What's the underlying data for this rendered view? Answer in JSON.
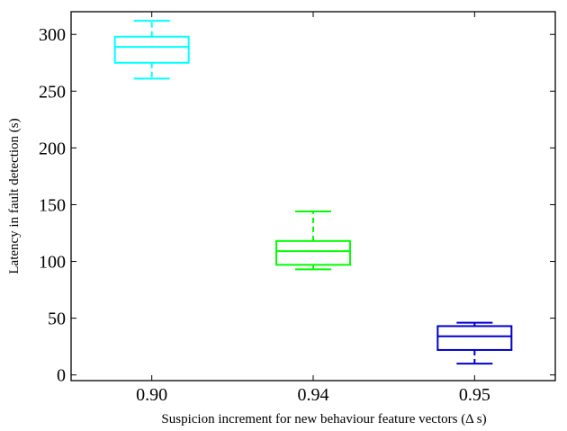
{
  "chart_data": {
    "type": "box",
    "xlabel": "Suspicion increment for new behaviour feature vectors (Δ s)",
    "ylabel": "Latency in fault detection (s)",
    "ylim": [
      -5,
      320
    ],
    "y_ticks": [
      0,
      50,
      100,
      150,
      200,
      250,
      300
    ],
    "y_tick_labels": [
      "0",
      "50",
      "100",
      "150",
      "200",
      "250",
      "300"
    ],
    "grid": false,
    "categories": [
      "0.90",
      "0.94",
      "0.95"
    ],
    "boxes": [
      {
        "category": "0.90",
        "whisker_low": 261,
        "q1": 275,
        "median": 289,
        "q3": 298,
        "whisker_high": 312,
        "color": "#00ffff"
      },
      {
        "category": "0.94",
        "whisker_low": 93,
        "q1": 97,
        "median": 109,
        "q3": 118,
        "whisker_high": 144,
        "color": "#00ff00"
      },
      {
        "category": "0.95",
        "whisker_low": 10,
        "q1": 22,
        "median": 34,
        "q3": 43,
        "whisker_high": 46,
        "color": "#0000cd"
      }
    ]
  }
}
